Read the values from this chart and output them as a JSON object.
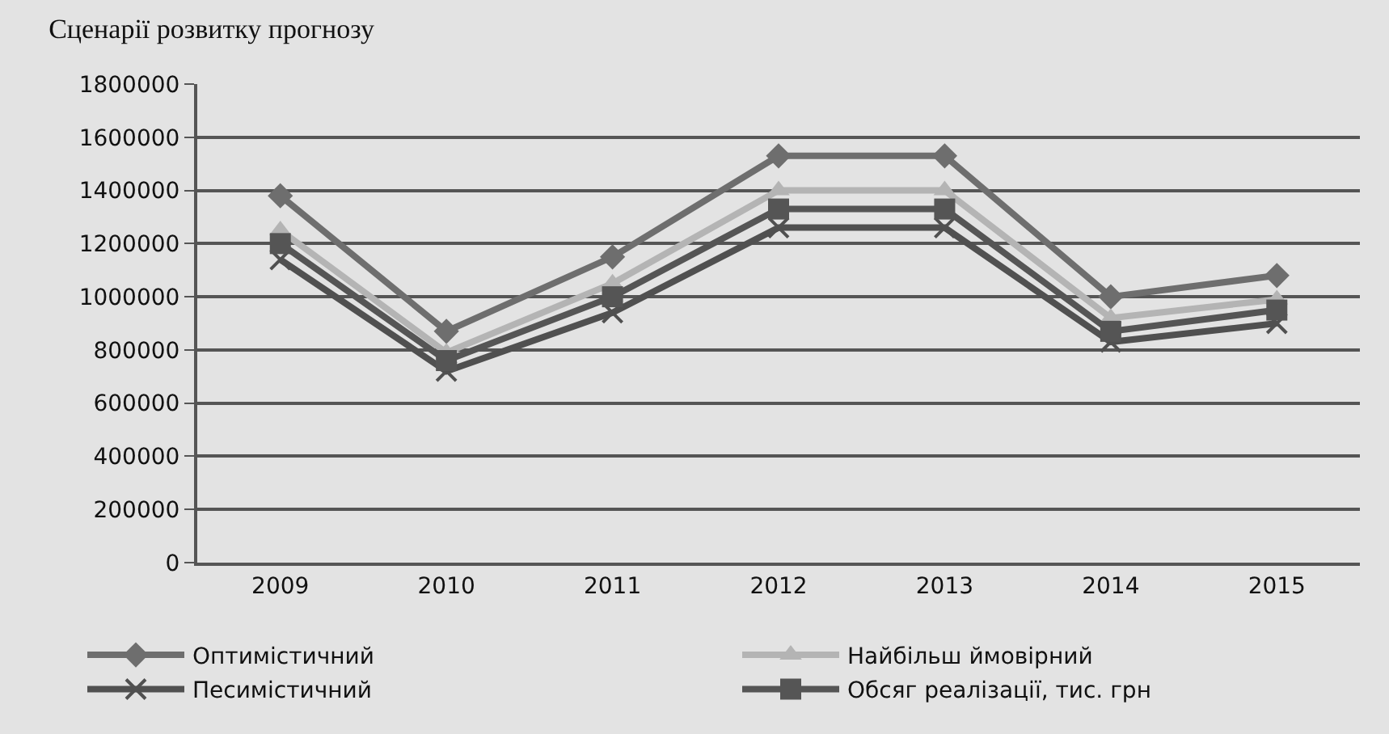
{
  "chart_data": {
    "type": "line",
    "title": "Сценарії розвитку прогнозу",
    "categories": [
      "2009",
      "2010",
      "2011",
      "2012",
      "2013",
      "2014",
      "2015"
    ],
    "series": [
      {
        "name": "Оптимістичний",
        "color": "#6e6e6e",
        "marker": "diamond",
        "values": [
          1380000,
          870000,
          1150000,
          1530000,
          1530000,
          1000000,
          1080000
        ]
      },
      {
        "name": "Найбільш ймовірний",
        "color": "#b4b4b4",
        "marker": "triangle",
        "values": [
          1250000,
          790000,
          1050000,
          1400000,
          1400000,
          920000,
          990000
        ]
      },
      {
        "name": "Песимістичний",
        "color": "#505050",
        "marker": "cross",
        "values": [
          1140000,
          720000,
          940000,
          1260000,
          1260000,
          830000,
          900000
        ]
      },
      {
        "name": "Обсяг реалізації, тис. грн",
        "color": "#555555",
        "marker": "square",
        "values": [
          1200000,
          760000,
          1000000,
          1330000,
          1330000,
          870000,
          950000
        ]
      }
    ],
    "ylim": [
      0,
      1800000
    ],
    "yticks": [
      0,
      200000,
      400000,
      600000,
      800000,
      1000000,
      1200000,
      1400000,
      1600000,
      1800000
    ],
    "grid": "y",
    "legend": "bottom",
    "line_style": "solid"
  }
}
